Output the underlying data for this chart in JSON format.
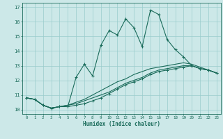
{
  "xlabel": "Humidex (Indice chaleur)",
  "xlim": [
    -0.5,
    23.5
  ],
  "ylim": [
    9.7,
    17.3
  ],
  "yticks": [
    10,
    11,
    12,
    13,
    14,
    15,
    16,
    17
  ],
  "xticks": [
    0,
    1,
    2,
    3,
    4,
    5,
    6,
    7,
    8,
    9,
    10,
    11,
    12,
    13,
    14,
    15,
    16,
    17,
    18,
    19,
    20,
    21,
    22,
    23
  ],
  "bg_color": "#cce8e8",
  "grid_color": "#99cccc",
  "line_color": "#1a6b5a",
  "line1_x": [
    0,
    1,
    2,
    3,
    4,
    5,
    6,
    7,
    8,
    9,
    10,
    11,
    12,
    13,
    14,
    15,
    16,
    17,
    18,
    19,
    20,
    21,
    22,
    23
  ],
  "line1_y": [
    10.8,
    10.7,
    10.3,
    10.1,
    10.2,
    10.2,
    12.2,
    13.1,
    12.3,
    14.4,
    15.4,
    15.1,
    16.2,
    15.6,
    14.3,
    16.8,
    16.5,
    14.8,
    14.1,
    13.6,
    13.0,
    12.8,
    12.7,
    12.5
  ],
  "line2_x": [
    0,
    1,
    2,
    3,
    4,
    5,
    6,
    7,
    8,
    9,
    10,
    11,
    12,
    13,
    14,
    15,
    16,
    17,
    18,
    19,
    20,
    21,
    22,
    23
  ],
  "line2_y": [
    10.8,
    10.7,
    10.3,
    10.1,
    10.2,
    10.2,
    10.3,
    10.4,
    10.6,
    10.8,
    11.1,
    11.4,
    11.7,
    11.9,
    12.1,
    12.4,
    12.6,
    12.7,
    12.8,
    12.9,
    13.0,
    12.8,
    12.7,
    12.5
  ],
  "line3_x": [
    0,
    1,
    2,
    3,
    4,
    5,
    6,
    7,
    8,
    9,
    10,
    11,
    12,
    13,
    14,
    15,
    16,
    17,
    18,
    19,
    20,
    21,
    22,
    23
  ],
  "line3_y": [
    10.8,
    10.7,
    10.3,
    10.1,
    10.2,
    10.3,
    10.4,
    10.6,
    10.8,
    11.0,
    11.2,
    11.5,
    11.8,
    12.0,
    12.2,
    12.5,
    12.7,
    12.8,
    12.9,
    13.0,
    13.0,
    12.8,
    12.7,
    12.5
  ],
  "line4_x": [
    0,
    1,
    2,
    3,
    4,
    5,
    6,
    7,
    8,
    9,
    10,
    11,
    12,
    13,
    14,
    15,
    16,
    17,
    18,
    19,
    20,
    21,
    22,
    23
  ],
  "line4_y": [
    10.8,
    10.7,
    10.3,
    10.1,
    10.2,
    10.3,
    10.5,
    10.7,
    11.0,
    11.3,
    11.6,
    11.9,
    12.1,
    12.4,
    12.6,
    12.8,
    12.9,
    13.0,
    13.1,
    13.2,
    13.1,
    12.9,
    12.7,
    12.5
  ]
}
